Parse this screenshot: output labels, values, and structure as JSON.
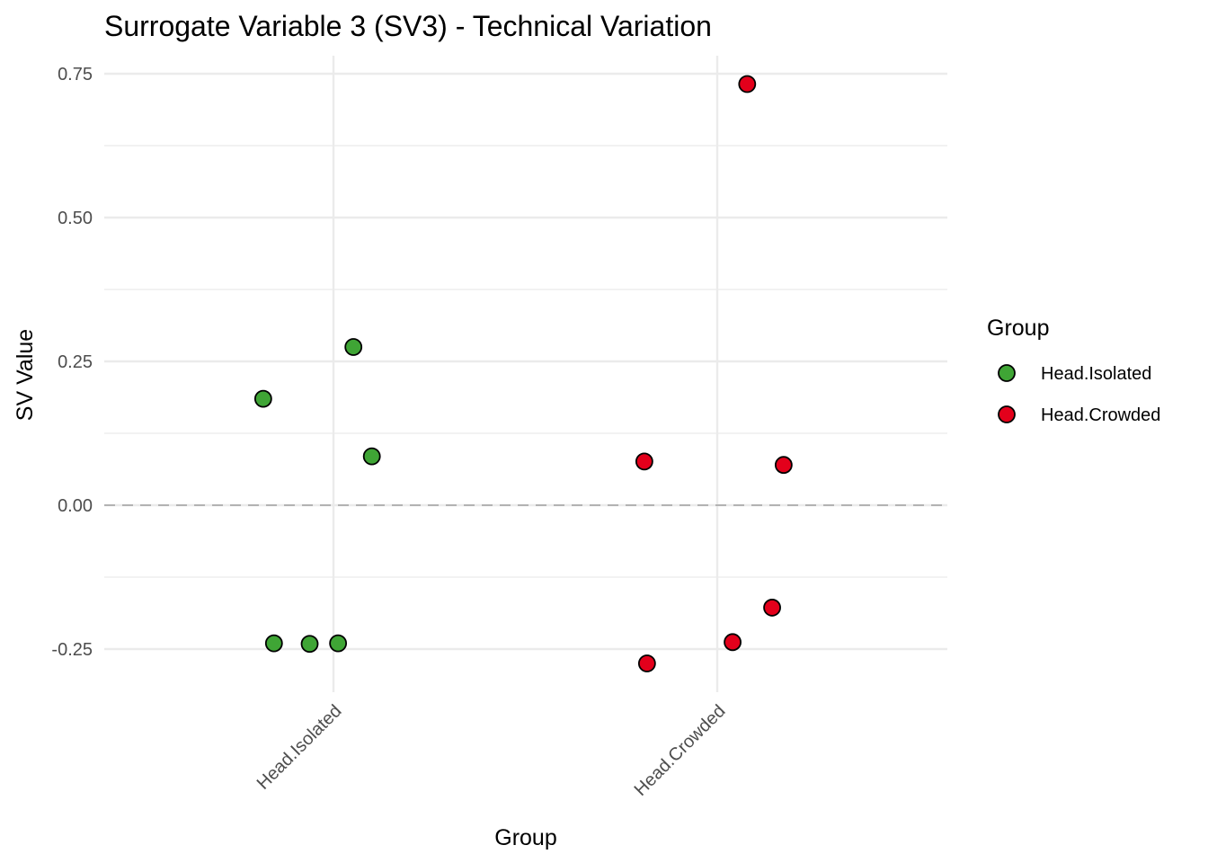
{
  "chart_data": {
    "type": "scatter",
    "title": "Surrogate Variable 3 (SV3) - Technical Variation",
    "xlabel": "Group",
    "ylabel": "SV Value",
    "categories": [
      "Head.Isolated",
      "Head.Crowded"
    ],
    "ylim": [
      -0.32,
      0.78
    ],
    "yticks": [
      -0.25,
      0.0,
      0.25,
      0.5,
      0.75
    ],
    "ytick_labels": [
      "-0.25",
      "0.00",
      "0.25",
      "0.50",
      "0.75"
    ],
    "reference_line": {
      "y": 0,
      "style": "dashed"
    },
    "grid": true,
    "legend": {
      "title": "Group",
      "position": "right"
    },
    "series": [
      {
        "name": "Head.Isolated",
        "color": "#3fa535",
        "points": [
          {
            "jitter": -0.183,
            "y": 0.185
          },
          {
            "jitter": 0.052,
            "y": 0.275
          },
          {
            "jitter": 0.1,
            "y": 0.085
          },
          {
            "jitter": -0.155,
            "y": -0.24
          },
          {
            "jitter": -0.062,
            "y": -0.241
          },
          {
            "jitter": 0.012,
            "y": -0.24
          }
        ]
      },
      {
        "name": "Head.Crowded",
        "color": "#e3001b",
        "points": [
          {
            "jitter": 0.078,
            "y": 0.732
          },
          {
            "jitter": -0.19,
            "y": 0.076
          },
          {
            "jitter": 0.173,
            "y": 0.07
          },
          {
            "jitter": 0.143,
            "y": -0.178
          },
          {
            "jitter": 0.04,
            "y": -0.238
          },
          {
            "jitter": -0.183,
            "y": -0.275
          }
        ]
      }
    ]
  }
}
